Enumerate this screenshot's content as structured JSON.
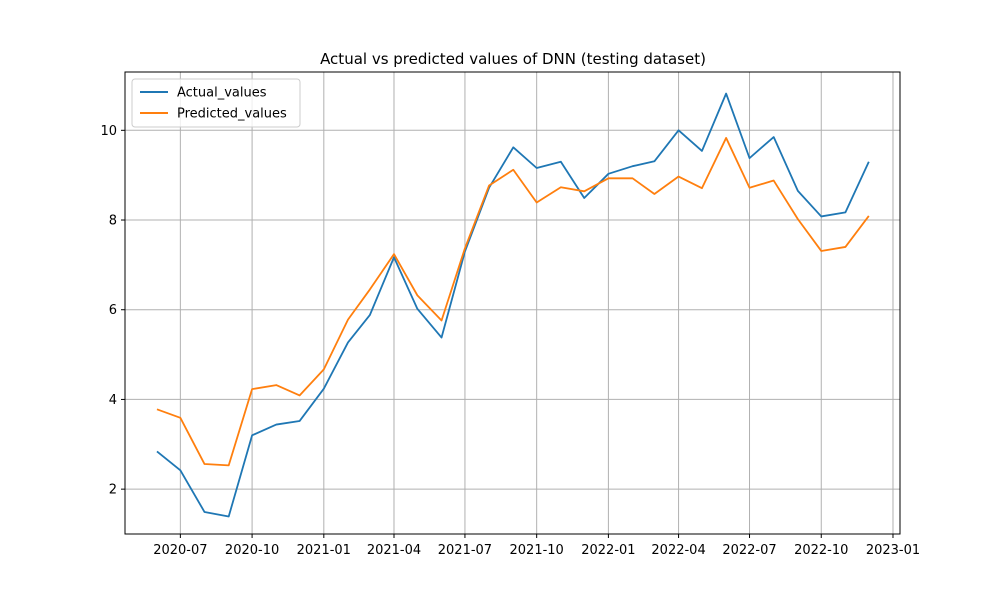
{
  "chart_data": {
    "type": "line",
    "title": "Actual vs predicted values of DNN (testing dataset)",
    "xlabel": "",
    "ylabel": "",
    "x": [
      "2020-06-01",
      "2020-07-01",
      "2020-08-01",
      "2020-09-01",
      "2020-10-01",
      "2020-11-01",
      "2020-12-01",
      "2021-01-01",
      "2021-02-01",
      "2021-03-01",
      "2021-04-01",
      "2021-05-01",
      "2021-06-01",
      "2021-07-01",
      "2021-08-01",
      "2021-09-01",
      "2021-10-01",
      "2021-11-01",
      "2021-12-01",
      "2022-01-01",
      "2022-02-01",
      "2022-03-01",
      "2022-04-01",
      "2022-05-01",
      "2022-06-01",
      "2022-07-01",
      "2022-08-01",
      "2022-09-01",
      "2022-10-01",
      "2022-11-01",
      "2022-12-01"
    ],
    "series": [
      {
        "name": "Actual_values",
        "color": "#1f77b4",
        "values": [
          2.84,
          2.42,
          1.49,
          1.39,
          3.2,
          3.44,
          3.52,
          4.24,
          5.27,
          5.88,
          7.17,
          6.02,
          5.38,
          7.3,
          8.72,
          9.62,
          9.16,
          9.3,
          8.49,
          9.03,
          9.2,
          9.31,
          10.0,
          9.54,
          10.82,
          9.38,
          9.85,
          8.65,
          8.08,
          8.17,
          9.3
        ]
      },
      {
        "name": "Predicted_values",
        "color": "#ff7f0e",
        "values": [
          3.78,
          3.59,
          2.56,
          2.53,
          4.23,
          4.32,
          4.09,
          4.67,
          5.78,
          6.45,
          7.24,
          6.32,
          5.76,
          7.37,
          8.77,
          9.12,
          8.39,
          8.73,
          8.64,
          8.93,
          8.93,
          8.58,
          8.97,
          8.71,
          9.83,
          8.72,
          8.88,
          8.02,
          7.31,
          7.4,
          8.09
        ]
      }
    ],
    "xlim": [
      "2020-04-21",
      "2023-01-10"
    ],
    "ylim": [
      1.0,
      11.3
    ],
    "x_ticks": [
      "2020-07-01",
      "2020-10-01",
      "2021-01-01",
      "2021-04-01",
      "2021-07-01",
      "2021-10-01",
      "2022-01-01",
      "2022-04-01",
      "2022-07-01",
      "2022-10-01",
      "2023-01-01"
    ],
    "x_tick_labels": [
      "2020-07",
      "2020-10",
      "2021-01",
      "2021-04",
      "2021-07",
      "2021-10",
      "2022-01",
      "2022-04",
      "2022-07",
      "2022-10",
      "2023-01"
    ],
    "y_ticks": [
      2,
      4,
      6,
      8,
      10
    ],
    "y_tick_labels": [
      "2",
      "4",
      "6",
      "8",
      "10"
    ],
    "grid": true,
    "legend": {
      "placement": "top-left"
    }
  }
}
